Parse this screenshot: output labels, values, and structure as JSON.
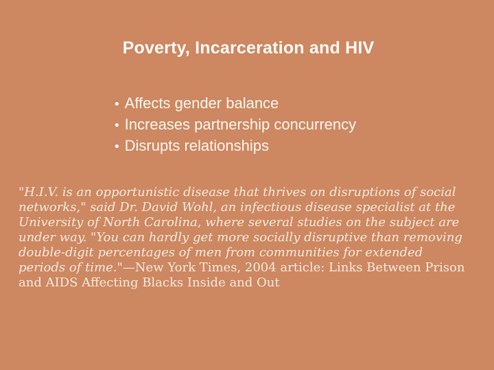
{
  "slide": {
    "title": "Poverty, Incarceration and HIV",
    "bullet_char": "•",
    "bullets": [
      {
        "text": "Affects gender balance"
      },
      {
        "text": "Increases partnership concurrency"
      },
      {
        "text": "Disrupts relationships"
      }
    ],
    "quote": {
      "italic_part": "\"H.I.V. is an opportunistic disease that thrives on disruptions of social networks,\" said Dr. David Wohl, an infectious disease specialist at the University of North Carolina, where several studies on the subject are under way. \"You can hardly get more socially disruptive than removing double-digit percentages of men from communities for extended periods of time.\"",
      "attribution_part": "—New York Times, 2004 article: Links Between Prison and AIDS Affecting Blacks Inside and Out"
    },
    "colors": {
      "background": "#CD8761",
      "heading_text": "#FDFBF7",
      "quote_text": "#F4EBDE"
    }
  }
}
